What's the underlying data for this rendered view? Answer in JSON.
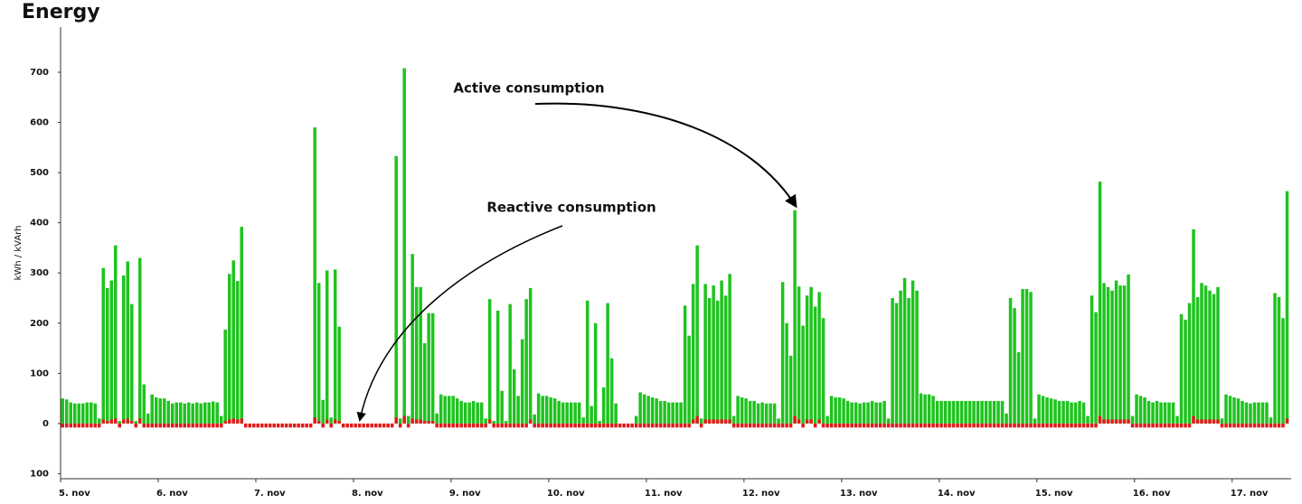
{
  "chart_data": {
    "type": "bar",
    "title": "Energy",
    "ylabel": "kWh / kVArh",
    "annotations": [
      "Active consumption",
      "Reactive consumption"
    ],
    "xlim": [
      0,
      302.5
    ],
    "xticks": [
      {
        "value": 0,
        "label": "5. nov"
      },
      {
        "value": 24,
        "label": "6. nov"
      },
      {
        "value": 48,
        "label": "7. nov"
      },
      {
        "value": 72,
        "label": "8. nov"
      },
      {
        "value": 96,
        "label": "9. nov"
      },
      {
        "value": 120,
        "label": "10. nov"
      },
      {
        "value": 144,
        "label": "11. nov"
      },
      {
        "value": 168,
        "label": "12. nov"
      },
      {
        "value": 192,
        "label": "13. nov"
      },
      {
        "value": 216,
        "label": "14. nov"
      },
      {
        "value": 240,
        "label": "15. nov"
      },
      {
        "value": 264,
        "label": "16. nov"
      },
      {
        "value": 288,
        "label": "17. nov"
      }
    ],
    "ylim": [
      -110,
      790
    ],
    "yticks": [
      {
        "value": -100,
        "label": "100"
      },
      0,
      100,
      200,
      300,
      400,
      500,
      600,
      700
    ],
    "series": [
      {
        "color": "#1ec31e",
        "values": [
          50,
          48,
          42,
          40,
          40,
          40,
          42,
          42,
          40,
          10,
          310,
          270,
          285,
          355,
          5,
          295,
          323,
          238,
          5,
          330,
          78,
          20,
          58,
          52,
          50,
          50,
          45,
          40,
          42,
          42,
          40,
          42,
          40,
          42,
          40,
          42,
          42,
          44,
          42,
          15,
          187,
          298,
          325,
          284,
          392,
          0,
          0,
          0,
          0,
          0,
          0,
          0,
          0,
          0,
          0,
          0,
          0,
          0,
          0,
          0,
          0,
          0,
          590,
          280,
          47,
          305,
          12,
          307,
          193,
          0,
          0,
          0,
          0,
          0,
          0,
          0,
          0,
          0,
          0,
          0,
          0,
          0,
          533,
          10,
          708,
          15,
          338,
          272,
          272,
          160,
          220,
          220,
          20,
          58,
          55,
          55,
          55,
          50,
          45,
          42,
          42,
          45,
          42,
          42,
          10,
          248,
          5,
          225,
          65,
          5,
          238,
          108,
          55,
          168,
          248,
          270,
          18,
          60,
          55,
          55,
          52,
          50,
          45,
          42,
          42,
          42,
          42,
          42,
          12,
          245,
          35,
          200,
          5,
          72,
          240,
          130,
          40,
          0,
          0,
          0,
          0,
          15,
          62,
          58,
          55,
          52,
          50,
          45,
          45,
          42,
          42,
          42,
          42,
          235,
          175,
          278,
          355,
          10,
          278,
          250,
          275,
          245,
          285,
          255,
          298,
          15,
          55,
          52,
          50,
          45,
          45,
          40,
          42,
          40,
          40,
          40,
          10,
          282,
          200,
          135,
          425,
          273,
          195,
          255,
          272,
          233,
          262,
          210,
          15,
          55,
          52,
          52,
          50,
          45,
          42,
          42,
          40,
          42,
          42,
          45,
          42,
          42,
          45,
          10,
          250,
          240,
          265,
          290,
          250,
          285,
          265,
          60,
          58,
          58,
          55,
          45,
          45,
          45,
          45,
          45,
          45,
          45,
          45,
          45,
          45,
          45,
          45,
          45,
          45,
          45,
          45,
          45,
          20,
          250,
          230,
          142,
          268,
          268,
          262,
          10,
          58,
          55,
          52,
          50,
          48,
          45,
          45,
          45,
          42,
          42,
          45,
          42,
          15,
          255,
          222,
          482,
          280,
          272,
          265,
          285,
          275,
          275,
          297,
          15,
          58,
          55,
          52,
          45,
          42,
          45,
          42,
          42,
          42,
          42,
          15,
          218,
          207,
          240,
          387,
          252,
          280,
          275,
          265,
          258,
          272,
          10,
          58,
          55,
          52,
          50,
          45,
          42,
          40,
          42,
          42,
          42,
          42,
          12,
          260,
          252,
          210,
          463
        ]
      },
      {
        "color": "#e01b1b",
        "values": [
          -8,
          -8,
          -8,
          -8,
          -8,
          -8,
          -8,
          -8,
          -8,
          -8,
          8,
          5,
          8,
          10,
          -8,
          8,
          10,
          5,
          -8,
          10,
          -8,
          -8,
          -8,
          -8,
          -8,
          -8,
          -8,
          -8,
          -8,
          -8,
          -8,
          -8,
          -8,
          -8,
          -8,
          -8,
          -8,
          -8,
          -8,
          -8,
          5,
          8,
          10,
          8,
          10,
          -8,
          -8,
          -8,
          -8,
          -8,
          -8,
          -8,
          -8,
          -8,
          -8,
          -8,
          -8,
          -8,
          -8,
          -8,
          -8,
          -8,
          12,
          5,
          -8,
          8,
          -8,
          8,
          5,
          -8,
          -8,
          -8,
          -8,
          -8,
          -8,
          -8,
          -8,
          -8,
          -8,
          -8,
          -8,
          -8,
          12,
          -8,
          15,
          -8,
          10,
          8,
          8,
          5,
          5,
          5,
          -8,
          -8,
          -8,
          -8,
          -8,
          -8,
          -8,
          -8,
          -8,
          -8,
          -8,
          -8,
          -8,
          8,
          -8,
          -8,
          -8,
          -8,
          -8,
          -8,
          -8,
          -8,
          -8,
          8,
          -8,
          -8,
          -8,
          -8,
          -8,
          -8,
          -8,
          -8,
          -8,
          -8,
          -8,
          -8,
          -8,
          -8,
          -8,
          -8,
          -8,
          -8,
          -8,
          -8,
          -8,
          -8,
          -8,
          -8,
          -8,
          -8,
          -8,
          -8,
          -8,
          -8,
          -8,
          -8,
          -8,
          -8,
          -8,
          -8,
          -8,
          -8,
          -8,
          8,
          15,
          -8,
          8,
          8,
          8,
          8,
          8,
          8,
          8,
          -8,
          -8,
          -8,
          -8,
          -8,
          -8,
          -8,
          -8,
          -8,
          -8,
          -8,
          -8,
          -8,
          -8,
          -8,
          15,
          8,
          -8,
          8,
          8,
          -8,
          8,
          -8,
          -8,
          -8,
          -8,
          -8,
          -8,
          -8,
          -8,
          -8,
          -8,
          -8,
          -8,
          -8,
          -8,
          -8,
          -8,
          -8,
          -8,
          -8,
          -8,
          -8,
          -8,
          -8,
          -8,
          -8,
          -8,
          -8,
          -8,
          -8,
          -8,
          -8,
          -8,
          -8,
          -8,
          -8,
          -8,
          -8,
          -8,
          -8,
          -8,
          -8,
          -8,
          -8,
          -8,
          -8,
          -8,
          -8,
          -8,
          -8,
          -8,
          -8,
          -8,
          -8,
          -8,
          -8,
          -8,
          -8,
          -8,
          -8,
          -8,
          -8,
          -8,
          -8,
          -8,
          -8,
          -8,
          -8,
          -8,
          15,
          8,
          8,
          8,
          8,
          8,
          8,
          8,
          -8,
          -8,
          -8,
          -8,
          -8,
          -8,
          -8,
          -8,
          -8,
          -8,
          -8,
          -8,
          -8,
          -8,
          -8,
          15,
          8,
          8,
          8,
          8,
          8,
          8,
          -8,
          -8,
          -8,
          -8,
          -8,
          -8,
          -8,
          -8,
          -8,
          -8,
          -8,
          -8,
          -8,
          -8,
          -8,
          -8,
          10
        ]
      }
    ]
  }
}
